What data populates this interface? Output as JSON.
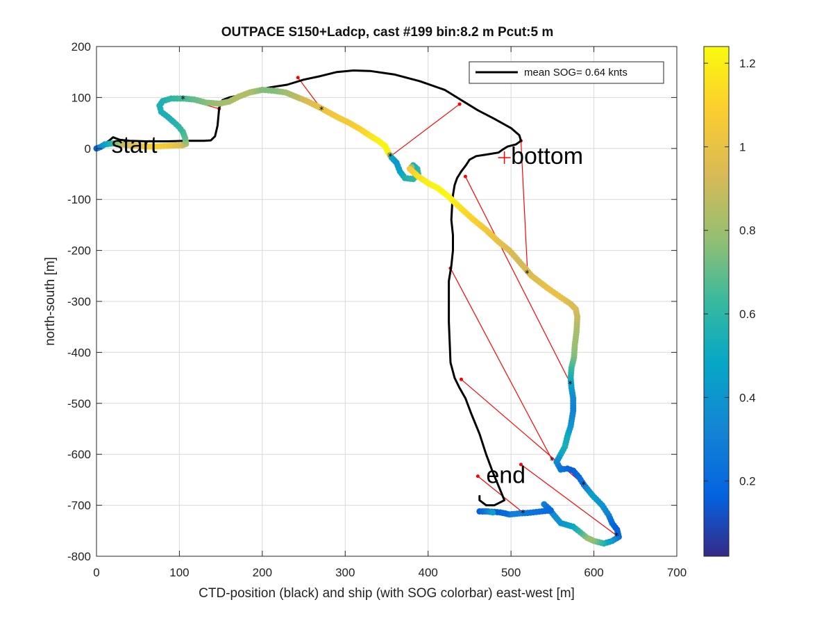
{
  "chart_data": {
    "type": "scatter",
    "title": "OUTPACE S150+Ladcp, cast #199 bin:8.2 m  Pcut:5 m",
    "xlabel": "CTD-position (black) and ship (with SOG colorbar) east-west [m]",
    "ylabel": "north-south [m]",
    "xlim": [
      0,
      700
    ],
    "ylim": [
      -800,
      200
    ],
    "xticks": [
      0,
      100,
      200,
      300,
      400,
      500,
      600,
      700
    ],
    "yticks": [
      200,
      100,
      0,
      -100,
      -200,
      -300,
      -400,
      -500,
      -600,
      -700,
      -800
    ],
    "grid": true,
    "legend": {
      "placement": "top-right",
      "entries": [
        {
          "label": "mean SOG=  0.64 knts",
          "color": "#000000"
        }
      ]
    },
    "colorbar": {
      "label": "",
      "ticks": [
        0.2,
        0.4,
        0.6,
        0.8,
        1,
        1.2
      ],
      "range": [
        0.02,
        1.24
      ],
      "colormap": "parula"
    },
    "annotations": [
      {
        "text": "start",
        "x": 18,
        "y": 8
      },
      {
        "text": "bottom",
        "x": 500,
        "y": -14
      },
      {
        "text": "end",
        "x": 470,
        "y": -640
      }
    ],
    "markers": [
      {
        "name": "bottom-marker",
        "x": 492,
        "y": -18,
        "symbol": "+",
        "color": "#ff0000"
      }
    ],
    "ctd_track": {
      "name": "CTD position",
      "color": "#000000",
      "points": [
        [
          0,
          0
        ],
        [
          8,
          8
        ],
        [
          15,
          15
        ],
        [
          20,
          22
        ],
        [
          28,
          17
        ],
        [
          40,
          15
        ],
        [
          60,
          14
        ],
        [
          85,
          14
        ],
        [
          108,
          15
        ],
        [
          130,
          15
        ],
        [
          138,
          16
        ],
        [
          143,
          24
        ],
        [
          146,
          45
        ],
        [
          148,
          80
        ],
        [
          152,
          95
        ],
        [
          160,
          100
        ],
        [
          175,
          105
        ],
        [
          190,
          113
        ],
        [
          210,
          120
        ],
        [
          230,
          125
        ],
        [
          250,
          135
        ],
        [
          270,
          142
        ],
        [
          290,
          150
        ],
        [
          310,
          153
        ],
        [
          330,
          152
        ],
        [
          360,
          145
        ],
        [
          390,
          132
        ],
        [
          420,
          115
        ],
        [
          440,
          95
        ],
        [
          460,
          75
        ],
        [
          480,
          58
        ],
        [
          500,
          40
        ],
        [
          510,
          26
        ],
        [
          512,
          15
        ],
        [
          506,
          8
        ],
        [
          496,
          4
        ],
        [
          490,
          -2
        ],
        [
          485,
          -8
        ],
        [
          470,
          -12
        ],
        [
          458,
          -15
        ],
        [
          450,
          -22
        ],
        [
          446,
          -32
        ],
        [
          440,
          -45
        ],
        [
          435,
          -58
        ],
        [
          432,
          -72
        ],
        [
          430,
          -92
        ],
        [
          429,
          -112
        ],
        [
          428,
          -140
        ],
        [
          430,
          -170
        ],
        [
          430,
          -200
        ],
        [
          428,
          -230
        ],
        [
          425,
          -260
        ],
        [
          425,
          -300
        ],
        [
          425,
          -340
        ],
        [
          426,
          -380
        ],
        [
          427,
          -420
        ],
        [
          432,
          -450
        ],
        [
          438,
          -470
        ],
        [
          445,
          -490
        ],
        [
          452,
          -520
        ],
        [
          462,
          -560
        ],
        [
          470,
          -600
        ],
        [
          478,
          -635
        ],
        [
          487,
          -670
        ],
        [
          492,
          -690
        ],
        [
          480,
          -700
        ],
        [
          470,
          -700
        ],
        [
          462,
          -690
        ],
        [
          462,
          -682
        ]
      ]
    },
    "ship_track": {
      "name": "ship (SOG colorbar)",
      "points": [
        [
          0,
          0,
          0.15
        ],
        [
          5,
          3,
          0.3
        ],
        [
          10,
          8,
          0.45
        ],
        [
          20,
          10,
          0.6
        ],
        [
          30,
          8,
          0.85
        ],
        [
          40,
          6,
          0.95
        ],
        [
          50,
          5,
          1.0
        ],
        [
          60,
          4,
          1.05
        ],
        [
          70,
          4,
          1.1
        ],
        [
          85,
          5,
          1.05
        ],
        [
          95,
          6,
          1.0
        ],
        [
          103,
          6,
          0.95
        ],
        [
          108,
          9,
          0.85
        ],
        [
          107,
          20,
          0.7
        ],
        [
          104,
          33,
          0.65
        ],
        [
          99,
          43,
          0.6
        ],
        [
          93,
          52,
          0.58
        ],
        [
          86,
          62,
          0.55
        ],
        [
          78,
          72,
          0.55
        ],
        [
          76,
          84,
          0.55
        ],
        [
          80,
          93,
          0.55
        ],
        [
          90,
          98,
          0.6
        ],
        [
          105,
          98,
          0.65
        ],
        [
          118,
          96,
          0.7
        ],
        [
          132,
          90,
          0.75
        ],
        [
          148,
          88,
          0.8
        ],
        [
          160,
          92,
          0.82
        ],
        [
          172,
          102,
          0.85
        ],
        [
          185,
          110,
          0.85
        ],
        [
          200,
          115,
          0.75
        ],
        [
          215,
          113,
          0.75
        ],
        [
          228,
          110,
          0.8
        ],
        [
          240,
          102,
          0.85
        ],
        [
          255,
          92,
          0.95
        ],
        [
          272,
          78,
          1.0
        ],
        [
          290,
          62,
          1.05
        ],
        [
          305,
          50,
          1.05
        ],
        [
          318,
          38,
          1.1
        ],
        [
          330,
          25,
          1.15
        ],
        [
          340,
          15,
          1.2
        ],
        [
          348,
          5,
          1.22
        ],
        [
          352,
          -8,
          1.22
        ],
        [
          356,
          -18,
          0.5
        ],
        [
          362,
          -28,
          0.4
        ],
        [
          366,
          -45,
          0.45
        ],
        [
          372,
          -58,
          0.55
        ],
        [
          382,
          -60,
          0.6
        ],
        [
          388,
          -50,
          0.6
        ],
        [
          387,
          -40,
          0.6
        ],
        [
          382,
          -33,
          0.55
        ],
        [
          378,
          -40,
          1.05
        ],
        [
          388,
          -55,
          1.15
        ],
        [
          400,
          -68,
          1.2
        ],
        [
          412,
          -78,
          1.22
        ],
        [
          425,
          -95,
          1.23
        ],
        [
          440,
          -118,
          1.15
        ],
        [
          455,
          -140,
          1.1
        ],
        [
          470,
          -160,
          1.05
        ],
        [
          485,
          -183,
          1.0
        ],
        [
          498,
          -200,
          0.95
        ],
        [
          510,
          -222,
          0.92
        ],
        [
          525,
          -250,
          0.95
        ],
        [
          545,
          -275,
          1.0
        ],
        [
          560,
          -292,
          1.0
        ],
        [
          572,
          -305,
          0.95
        ],
        [
          578,
          -315,
          0.95
        ],
        [
          580,
          -330,
          0.9
        ],
        [
          579,
          -360,
          0.82
        ],
        [
          577,
          -385,
          0.8
        ],
        [
          576,
          -410,
          0.75
        ],
        [
          573,
          -430,
          0.65
        ],
        [
          572,
          -450,
          0.55
        ],
        [
          573,
          -470,
          0.45
        ],
        [
          575,
          -490,
          0.35
        ],
        [
          575,
          -515,
          0.3
        ],
        [
          572,
          -545,
          0.4
        ],
        [
          568,
          -565,
          0.5
        ],
        [
          565,
          -585,
          0.55
        ],
        [
          560,
          -600,
          0.5
        ],
        [
          555,
          -615,
          0.35
        ],
        [
          560,
          -630,
          0.25
        ],
        [
          568,
          -628,
          0.2
        ],
        [
          575,
          -632,
          0.15
        ],
        [
          582,
          -645,
          0.2
        ],
        [
          588,
          -660,
          0.25
        ],
        [
          598,
          -680,
          0.45
        ],
        [
          610,
          -700,
          0.4
        ],
        [
          618,
          -720,
          0.3
        ],
        [
          622,
          -735,
          0.2
        ],
        [
          628,
          -748,
          0.15
        ],
        [
          630,
          -762,
          0.2
        ],
        [
          622,
          -770,
          0.4
        ],
        [
          612,
          -775,
          0.55
        ],
        [
          600,
          -770,
          0.75
        ],
        [
          592,
          -764,
          0.8
        ],
        [
          575,
          -742,
          0.5
        ],
        [
          560,
          -735,
          0.4
        ],
        [
          548,
          -712,
          0.35
        ],
        [
          540,
          -698,
          0.3
        ],
        [
          548,
          -710,
          0.2
        ],
        [
          520,
          -715,
          0.25
        ],
        [
          510,
          -716,
          0.3
        ],
        [
          498,
          -718,
          0.3
        ],
        [
          493,
          -716,
          0.2
        ],
        [
          487,
          -714,
          0.2
        ],
        [
          480,
          -713,
          0.15
        ],
        [
          470,
          -712,
          0.15
        ],
        [
          462,
          -712,
          0.15
        ],
        [
          472,
          -712,
          0.3
        ],
        [
          478,
          -714,
          0.45
        ]
      ]
    },
    "connections": [
      {
        "ship": [
          105,
          97
        ],
        "ctd": [
          148,
          78
        ]
      },
      {
        "ship": [
          272,
          76
        ],
        "ctd": [
          243,
          139
        ]
      },
      {
        "ship": [
          355,
          -15
        ],
        "ctd": [
          438,
          87
        ]
      },
      {
        "ship": [
          520,
          -245
        ],
        "ctd": [
          512,
          15
        ]
      },
      {
        "ship": [
          572,
          -462
        ],
        "ctd": [
          445,
          -55
        ]
      },
      {
        "ship": [
          550,
          -612
        ],
        "ctd": [
          427,
          -235
        ]
      },
      {
        "ship": [
          588,
          -660
        ],
        "ctd": [
          440,
          -453
        ]
      },
      {
        "ship": [
          628,
          -760
        ],
        "ctd": [
          512,
          -620
        ]
      },
      {
        "ship": [
          515,
          -715
        ],
        "ctd": [
          460,
          -643
        ]
      }
    ],
    "colors": {
      "ctd_line": "#000000",
      "connection_line": "#ff0000",
      "grid": "#d9d9d9",
      "axis": "#262626"
    }
  }
}
